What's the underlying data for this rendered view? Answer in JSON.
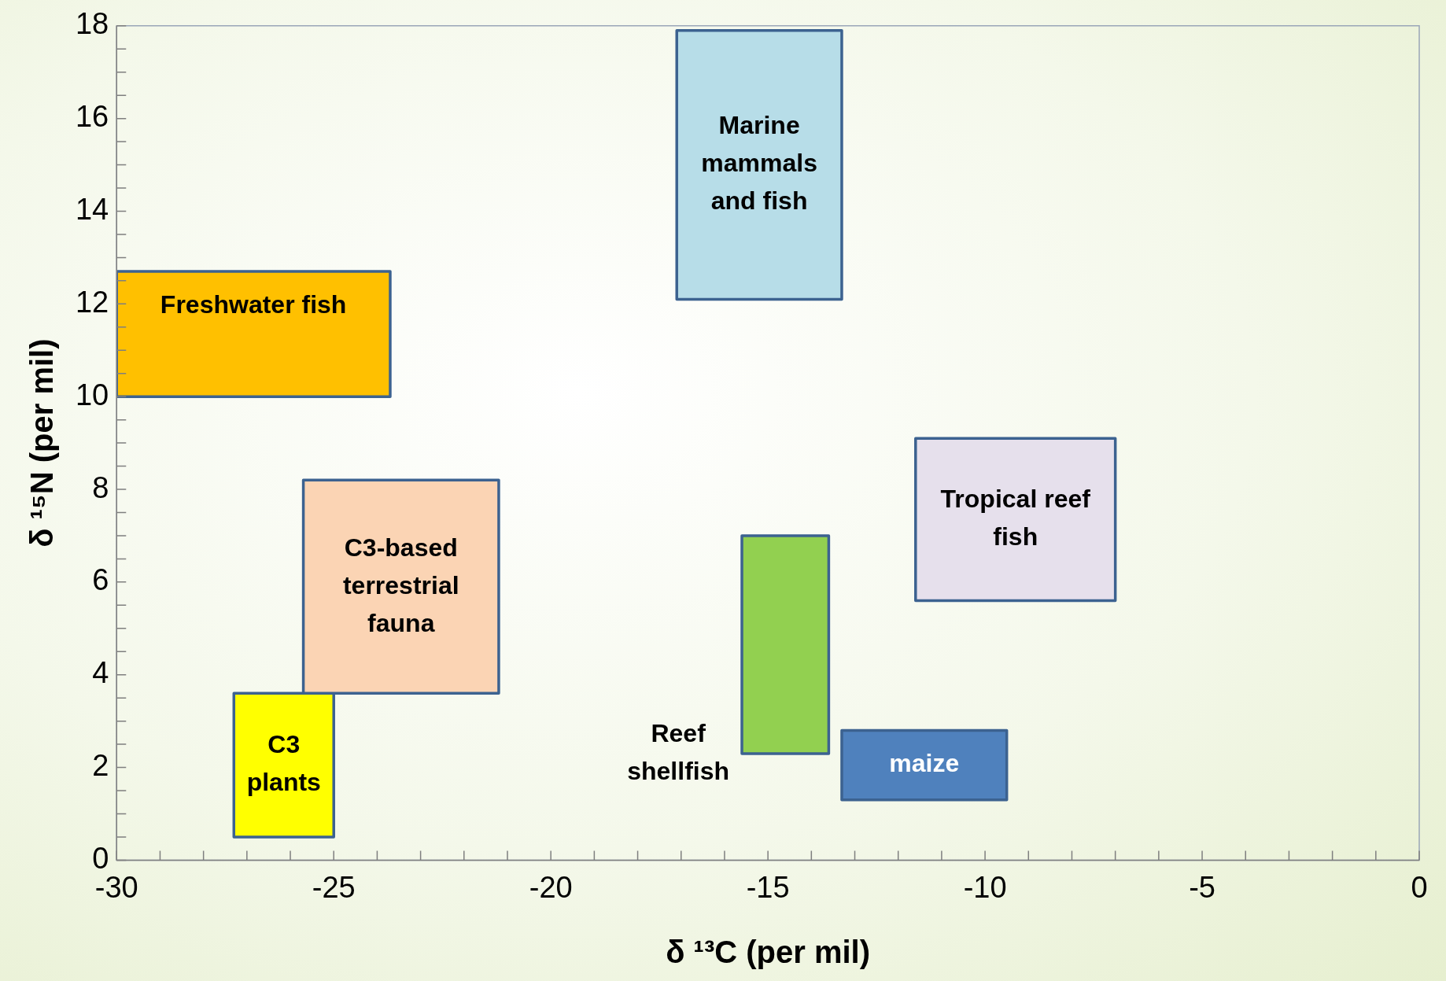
{
  "chart_data": {
    "type": "area",
    "xlabel": "δ ¹³C (per mil)",
    "ylabel": "δ ¹⁵N (per mil)",
    "legend": false,
    "grid": false,
    "xlim": [
      -30,
      0
    ],
    "xticks": [
      -30,
      {
        "value": -29,
        "label": null
      },
      {
        "value": -28,
        "label": null
      },
      {
        "value": -27,
        "label": null
      },
      {
        "value": -26,
        "label": null
      },
      -25,
      {
        "value": -24,
        "label": null
      },
      {
        "value": -23,
        "label": null
      },
      {
        "value": -22,
        "label": null
      },
      {
        "value": -21,
        "label": null
      },
      -20,
      {
        "value": -19,
        "label": null
      },
      {
        "value": -18,
        "label": null
      },
      {
        "value": -17,
        "label": null
      },
      {
        "value": -16,
        "label": null
      },
      -15,
      {
        "value": -14,
        "label": null
      },
      {
        "value": -13,
        "label": null
      },
      {
        "value": -12,
        "label": null
      },
      {
        "value": -11,
        "label": null
      },
      -10,
      {
        "value": -9,
        "label": null
      },
      {
        "value": -8,
        "label": null
      },
      {
        "value": -7,
        "label": null
      },
      {
        "value": -6,
        "label": null
      },
      -5,
      {
        "value": -4,
        "label": null
      },
      {
        "value": -3,
        "label": null
      },
      {
        "value": -2,
        "label": null
      },
      {
        "value": -1,
        "label": null
      },
      0
    ],
    "ylim": [
      0,
      18
    ],
    "yticks": [
      0,
      {
        "value": 0.5,
        "label": null
      },
      {
        "value": 1,
        "label": null
      },
      {
        "value": 1.5,
        "label": null
      },
      2,
      {
        "value": 2.5,
        "label": null
      },
      {
        "value": 3,
        "label": null
      },
      {
        "value": 3.5,
        "label": null
      },
      4,
      {
        "value": 4.5,
        "label": null
      },
      {
        "value": 5,
        "label": null
      },
      {
        "value": 5.5,
        "label": null
      },
      6,
      {
        "value": 6.5,
        "label": null
      },
      {
        "value": 7,
        "label": null
      },
      {
        "value": 7.5,
        "label": null
      },
      8,
      {
        "value": 8.5,
        "label": null
      },
      {
        "value": 9,
        "label": null
      },
      {
        "value": 9.5,
        "label": null
      },
      10,
      {
        "value": 10.5,
        "label": null
      },
      {
        "value": 11,
        "label": null
      },
      {
        "value": 11.5,
        "label": null
      },
      12,
      {
        "value": 12.5,
        "label": null
      },
      {
        "value": 13,
        "label": null
      },
      {
        "value": 13.5,
        "label": null
      },
      14,
      {
        "value": 14.5,
        "label": null
      },
      {
        "value": 15,
        "label": null
      },
      {
        "value": 15.5,
        "label": null
      },
      16,
      {
        "value": 16.5,
        "label": null
      },
      {
        "value": 17,
        "label": null
      },
      {
        "value": 17.5,
        "label": null
      },
      18
    ],
    "series": [
      {
        "name": "Freshwater fish",
        "color": "#ffc000",
        "x": [
          -30,
          -23.7,
          -23.7,
          -30,
          -30
        ],
        "values": [
          10,
          10,
          12.7,
          12.7,
          10
        ]
      },
      {
        "name": "Marine mammals and fish",
        "color": "#b7dde8",
        "x": [
          -17.1,
          -13.3,
          -13.3,
          -17.1,
          -17.1
        ],
        "values": [
          12.1,
          12.1,
          17.9,
          17.9,
          12.1
        ]
      },
      {
        "name": "C3-based terrestrial fauna",
        "color": "#fbd4b4",
        "x": [
          -25.7,
          -21.2,
          -21.2,
          -25.7,
          -25.7
        ],
        "values": [
          3.6,
          3.6,
          8.2,
          8.2,
          3.6
        ]
      },
      {
        "name": "C3 plants",
        "color": "#ffff00",
        "x": [
          -27.3,
          -25,
          -25,
          -27.3,
          -27.3
        ],
        "values": [
          0.5,
          0.5,
          3.6,
          3.6,
          0.5
        ]
      },
      {
        "name": "Reef shellfish",
        "color": "#92d050",
        "x": [
          -15.6,
          -13.6,
          -13.6,
          -15.6,
          -15.6
        ],
        "values": [
          2.3,
          2.3,
          7,
          7,
          2.3
        ]
      },
      {
        "name": "maize",
        "color": "#4f81bd",
        "x": [
          -13.3,
          -9.5,
          -9.5,
          -13.3,
          -13.3
        ],
        "values": [
          1.3,
          1.3,
          2.8,
          2.8,
          1.3
        ]
      },
      {
        "name": "Tropical reef fish",
        "color": "#e6e0ec",
        "x": [
          -11.6,
          -7,
          -7,
          -11.6,
          -11.6
        ],
        "values": [
          5.6,
          5.6,
          9.1,
          9.1,
          5.6
        ]
      }
    ]
  }
}
